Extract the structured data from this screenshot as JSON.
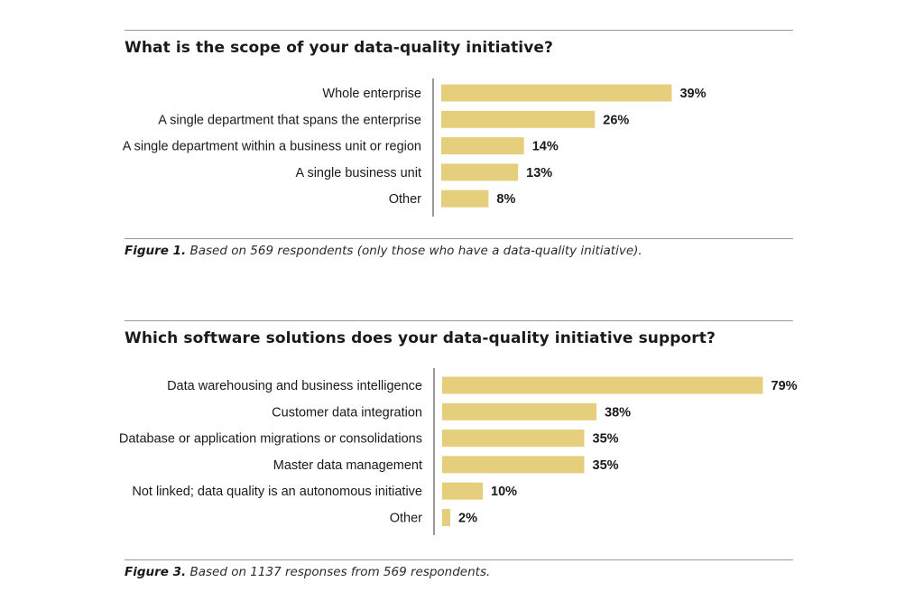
{
  "figures": [
    {
      "title": "What is the scope of your data-quality initiative?",
      "caption_label": "Figure 1.",
      "caption_text": "Based on 569 respondents (only those who have a data-quality initiative)."
    },
    {
      "title": "Which software solutions does your data-quality initiative support?",
      "caption_label": "Figure 3.",
      "caption_text": "Based on 1137 responses from 569 respondents."
    }
  ],
  "chart_data": [
    {
      "type": "bar",
      "orientation": "horizontal",
      "title": "What is the scope of your data-quality initiative?",
      "categories": [
        "Whole enterprise",
        "A single department that spans the enterprise",
        "A single department within a business unit or region",
        "A single business unit",
        "Other"
      ],
      "values": [
        39,
        26,
        14,
        13,
        8
      ],
      "value_labels": [
        "39%",
        "26%",
        "14%",
        "13%",
        "8%"
      ],
      "bar_color": "#e6cf7c",
      "grid": false
    },
    {
      "type": "bar",
      "orientation": "horizontal",
      "title": "Which software solutions does your data-quality initiative support?",
      "categories": [
        "Data warehousing and business intelligence",
        "Customer data integration",
        "Database or application migrations or consolidations",
        "Master data management",
        "Not linked; data quality is an autonomous initiative",
        "Other"
      ],
      "values": [
        79,
        38,
        35,
        35,
        10,
        2
      ],
      "value_labels": [
        "79%",
        "38%",
        "35%",
        "35%",
        "10%",
        "2%"
      ],
      "bar_color": "#e6cf7c",
      "grid": false
    }
  ]
}
